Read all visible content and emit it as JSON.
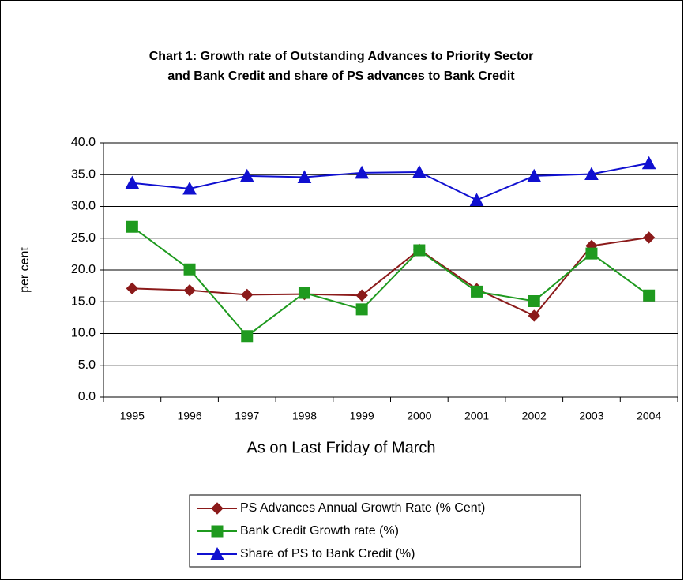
{
  "chart_data": {
    "type": "line",
    "title": [
      "Chart 1: Growth rate of Outstanding Advances to Priority Sector",
      "and  Bank Credit and share of PS advances to Bank Credit"
    ],
    "x_label": "As on Last Friday of March",
    "y_label": "per cent",
    "categories": [
      "1995",
      "1996",
      "1997",
      "1998",
      "1999",
      "2000",
      "2001",
      "2002",
      "2003",
      "2004"
    ],
    "series": [
      {
        "name": "PS Advances Annual Growth Rate (% Cent)",
        "color": "#8b1a1a",
        "marker": "diamond",
        "values": [
          17.1,
          16.8,
          16.1,
          16.2,
          16.0,
          23.2,
          17.0,
          12.8,
          23.8,
          25.1
        ]
      },
      {
        "name": "Bank Credit Growth rate (%)",
        "color": "#1f9a1f",
        "marker": "square",
        "values": [
          26.8,
          20.1,
          9.6,
          16.4,
          13.8,
          23.1,
          16.6,
          15.1,
          22.6,
          16.0
        ]
      },
      {
        "name": "Share  of PS to Bank Credit (%)",
        "color": "#1010d0",
        "marker": "triangle",
        "values": [
          33.7,
          32.8,
          34.8,
          34.6,
          35.3,
          35.4,
          31.0,
          34.8,
          35.1,
          36.8
        ]
      }
    ],
    "ylim": [
      0,
      40
    ],
    "yticks": [
      {
        "value": 0,
        "label": "0.0"
      },
      {
        "value": 5,
        "label": "5.0"
      },
      {
        "value": 10,
        "label": "10.0"
      },
      {
        "value": 15,
        "label": "15.0"
      },
      {
        "value": 20,
        "label": "20.0"
      },
      {
        "value": 25,
        "label": "25.0"
      },
      {
        "value": 30,
        "label": "30.0"
      },
      {
        "value": 35,
        "label": "35.0"
      },
      {
        "value": 40,
        "label": "40.0"
      }
    ],
    "grid": true,
    "legend": "bottom"
  }
}
